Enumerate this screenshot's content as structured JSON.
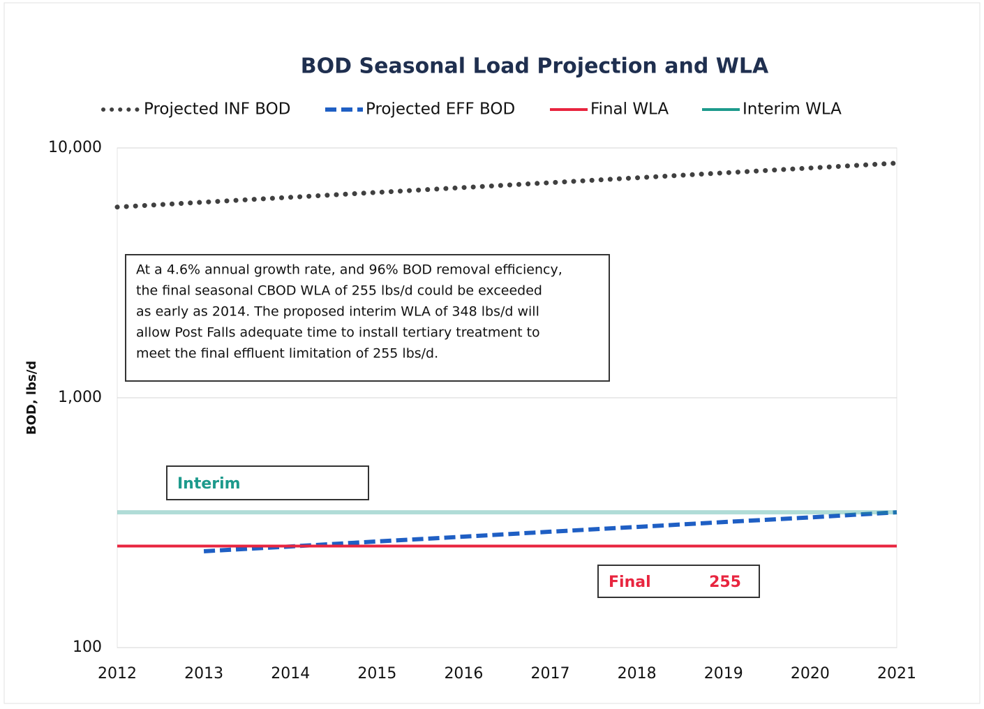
{
  "chart_data": {
    "type": "line",
    "title": "BOD Seasonal Load Projection and WLA",
    "y_label": "BOD, lbs/d",
    "log_y": true,
    "x": [
      2012,
      2013,
      2014,
      2015,
      2016,
      2017,
      2018,
      2019,
      2020,
      2021
    ],
    "xlim": [
      2012,
      2021
    ],
    "xticks": [
      2012,
      2013,
      2014,
      2015,
      2016,
      2017,
      2018,
      2019,
      2020,
      2021
    ],
    "ylim": [
      100,
      10000
    ],
    "yticks": [
      100,
      {
        "value": 1000,
        "label": "1,000"
      },
      {
        "value": 10000,
        "label": "10,000"
      }
    ],
    "grid": true,
    "legend": "top",
    "series": [
      {
        "name": "Projected INF BOD",
        "color": "#404040",
        "style": "dotted",
        "values": [
          5800,
          6067,
          6346,
          6638,
          6943,
          7262,
          7596,
          7946,
          8311,
          8694
        ]
      },
      {
        "name": "Projected EFF BOD",
        "color": "#1f5fc4",
        "style": "dashed",
        "values": [
          null,
          243,
          254,
          266,
          278,
          291,
          304,
          318,
          332,
          348
        ]
      },
      {
        "name": "Final WLA",
        "color": "#e8253f",
        "style": "solid",
        "values": [
          255,
          255,
          255,
          255,
          255,
          255,
          255,
          255,
          255,
          255
        ]
      },
      {
        "name": "Interim WLA",
        "color": "#1d9a8c",
        "style": "solid",
        "values": [
          348,
          348,
          348,
          348,
          348,
          348,
          348,
          348,
          348,
          348
        ]
      }
    ],
    "annotation": [
      "At a 4.6% annual growth rate, and 96% BOD removal efficiency,",
      "the  final seasonal CBOD WLA of 255 lbs/d could be exceeded",
      "as early as 2014.  The proposed  interim WLA of 348 lbs/d will",
      "allow Post Falls adequate time to install tertiary treatment to",
      "meet the final effluent limitation of 255 lbs/d."
    ],
    "interim_label": "Interim",
    "final_label": "Final",
    "final_value_label": "255"
  }
}
